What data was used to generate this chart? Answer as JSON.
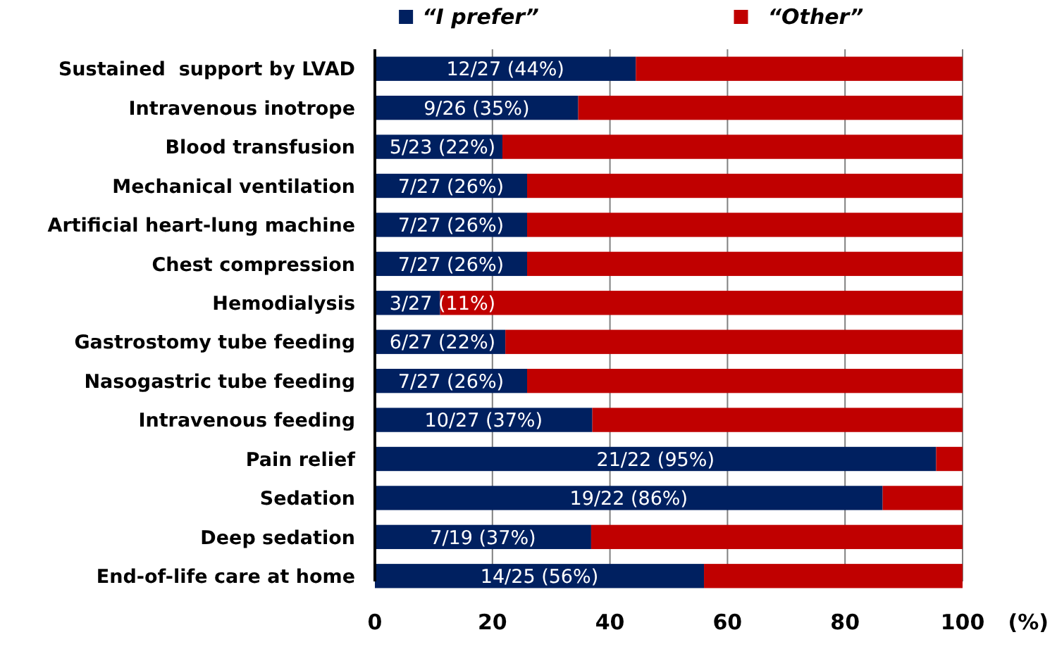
{
  "chart_data": {
    "type": "bar",
    "orientation": "horizontal",
    "stacked": true,
    "categories": [
      "Sustained  support by LVAD",
      "Intravenous inotrope",
      "Blood transfusion",
      "Mechanical ventilation",
      "Artificial heart-lung machine",
      "Chest compression",
      "Hemodialysis",
      "Gastrostomy tube feeding",
      "Nasogastric tube feeding",
      "Intravenous feeding",
      "Pain relief",
      "Sedation",
      "Deep sedation",
      "End-of-life care at home"
    ],
    "series": [
      {
        "name": "“I prefer”",
        "color": "#002060",
        "values": [
          44.4,
          34.6,
          21.7,
          25.9,
          25.9,
          25.9,
          11.1,
          22.2,
          25.9,
          37.0,
          95.5,
          86.4,
          36.8,
          56.0
        ],
        "value_labels": [
          "12/27 (44%)",
          "9/26 (35%)",
          "5/23 (22%)",
          "7/27 (26%)",
          "7/27 (26%)",
          "7/27 (26%)",
          "3/27 (11%)",
          "6/27 (22%)",
          "7/27 (26%)",
          "10/27 (37%)",
          "21/22 (95%)",
          "19/22 (86%)",
          "7/19 (37%)",
          "14/25 (56%)"
        ]
      },
      {
        "name": "“Other”",
        "color": "#c00000",
        "values": [
          55.6,
          65.4,
          78.3,
          74.1,
          74.1,
          74.1,
          88.9,
          77.8,
          74.1,
          63.0,
          4.5,
          13.6,
          63.2,
          44.0
        ]
      }
    ],
    "xlabel": "(%)",
    "xlim": [
      0,
      100
    ],
    "xticks": [
      0,
      20,
      40,
      60,
      80,
      100
    ],
    "grid": "x",
    "legend": "top"
  }
}
